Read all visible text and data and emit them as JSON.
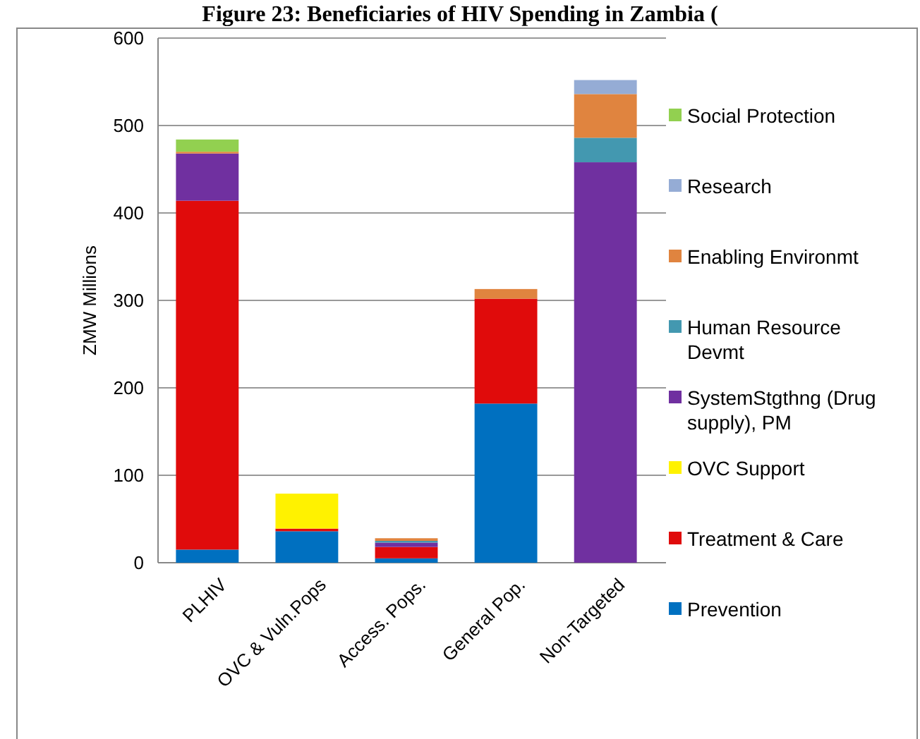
{
  "chart_data": {
    "type": "bar",
    "stacked": true,
    "title": "Figure 23: Beneficiaries of HIV Spending in Zambia (",
    "ylabel": "ZMW Millions",
    "categories": [
      "PLHIV",
      "OVC & Vuln.Pops",
      "Access. Pops.",
      "General Pop.",
      "Non-Targeted"
    ],
    "series": [
      {
        "name": "Prevention",
        "color": "#0070c0",
        "values": [
          15,
          36,
          5,
          182,
          0
        ]
      },
      {
        "name": "Treatment & Care",
        "color": "#e00b0b",
        "values": [
          399,
          3,
          13,
          120,
          0
        ]
      },
      {
        "name": "OVC Support",
        "color": "#fff200",
        "values": [
          0,
          40,
          0,
          0,
          0
        ]
      },
      {
        "name": "SystemStgthng (Drug supply), PM",
        "color": "#7030a0",
        "values": [
          54,
          0,
          5,
          0,
          458
        ]
      },
      {
        "name": "Human Resource Devmt",
        "color": "#4398b0",
        "values": [
          0,
          0,
          2,
          0,
          28
        ]
      },
      {
        "name": "Enabling Environmt",
        "color": "#e0843f",
        "values": [
          2,
          0,
          3,
          11,
          50
        ]
      },
      {
        "name": "Research",
        "color": "#95acd5",
        "values": [
          0,
          0,
          0,
          0,
          16
        ]
      },
      {
        "name": "Social Protection",
        "color": "#92d050",
        "values": [
          14,
          0,
          0,
          0,
          0
        ]
      }
    ],
    "ylim": [
      0,
      600
    ],
    "yticks": [
      0,
      100,
      200,
      300,
      400,
      500,
      600
    ],
    "grid": "y",
    "legend": "right"
  }
}
